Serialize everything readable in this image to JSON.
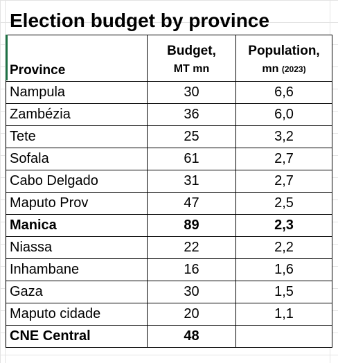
{
  "title": "Election budget by province",
  "headers": {
    "province": "Province",
    "budget_line1": "Budget,",
    "budget_line2": "MT mn",
    "population_line1": "Population,",
    "population_line2": "mn",
    "population_year": "(2023)"
  },
  "rows": [
    {
      "province": "Nampula",
      "budget": "30",
      "population": "6,6",
      "bold": false
    },
    {
      "province": "Zambézia",
      "budget": "36",
      "population": "6,0",
      "bold": false
    },
    {
      "province": "Tete",
      "budget": "25",
      "population": "3,2",
      "bold": false
    },
    {
      "province": "Sofala",
      "budget": "61",
      "population": "2,7",
      "bold": false
    },
    {
      "province": "Cabo Delgado",
      "budget": "31",
      "population": "2,7",
      "bold": false
    },
    {
      "province": "Maputo Prov",
      "budget": "47",
      "population": "2,5",
      "bold": false
    },
    {
      "province": "Manica",
      "budget": "89",
      "population": "2,3",
      "bold": true
    },
    {
      "province": "Niassa",
      "budget": "22",
      "population": "2,2",
      "bold": false
    },
    {
      "province": "Inhambane",
      "budget": "16",
      "population": "1,6",
      "bold": false
    },
    {
      "province": "Gaza",
      "budget": "30",
      "population": "1,5",
      "bold": false
    },
    {
      "province": "Maputo cidade",
      "budget": "20",
      "population": "1,1",
      "bold": false
    },
    {
      "province": "CNE Central",
      "budget": "48",
      "population": "",
      "bold": true
    }
  ],
  "colors": {
    "border": "#000000",
    "gridline": "#e3e3e3",
    "selection_marker": "#1e7145"
  }
}
